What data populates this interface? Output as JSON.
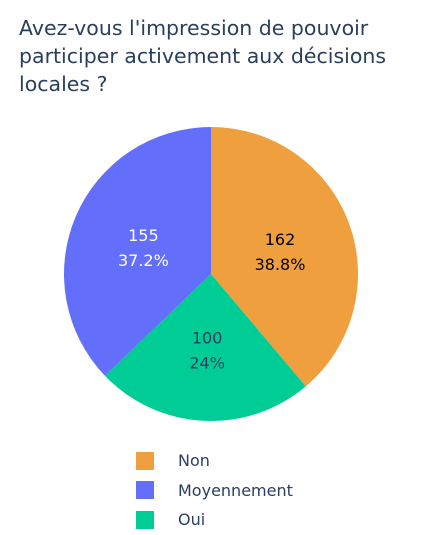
{
  "chart_data": {
    "type": "pie",
    "title": "Avez-vous l'impression de pouvoir participer activement aux décisions locales ?",
    "slices": [
      {
        "label": "Non",
        "value": 162,
        "percent_label": "38.8%",
        "color": "#EF9F3D",
        "text_color": "#000000"
      },
      {
        "label": "Oui",
        "value": 100,
        "percent_label": "24%",
        "color": "#00CC96",
        "text_color": "#2a3f5f"
      },
      {
        "label": "Moyennement",
        "value": 155,
        "percent_label": "37.2%",
        "color": "#636EFA",
        "text_color": "#ffffff"
      }
    ],
    "legend": [
      "Non",
      "Moyennement",
      "Oui"
    ],
    "legend_placement": "bottom",
    "direction": "clockwise",
    "start": "top"
  }
}
